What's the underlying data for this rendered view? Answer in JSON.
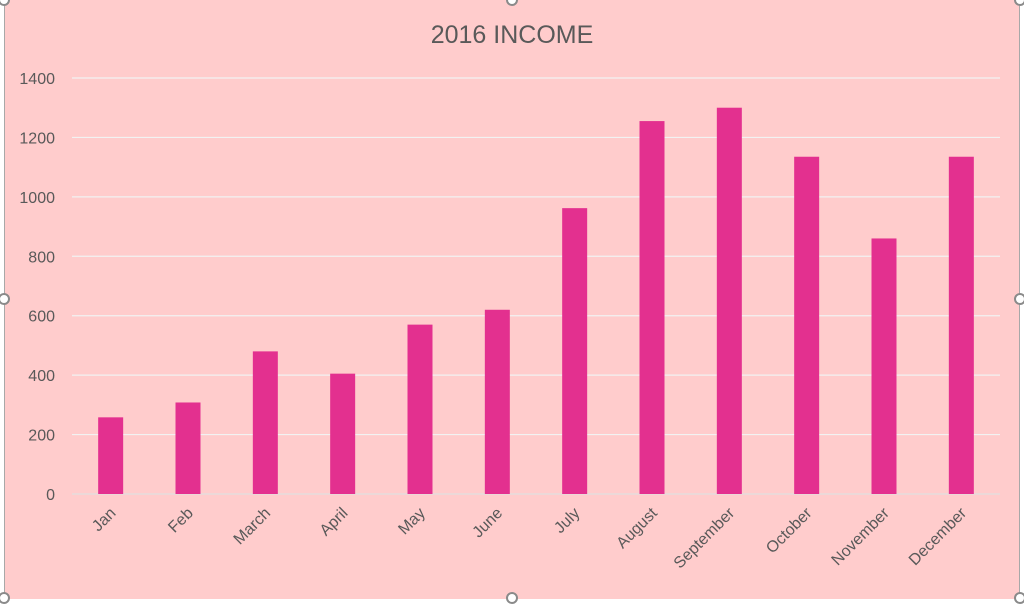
{
  "chart_data": {
    "type": "bar",
    "title": "2016 INCOME",
    "xlabel": "",
    "ylabel": "",
    "categories": [
      "Jan",
      "Feb",
      "March",
      "April",
      "May",
      "June",
      "July",
      "August",
      "September",
      "October",
      "November",
      "December"
    ],
    "series": [
      {
        "values": [
          258,
          308,
          480,
          405,
          570,
          620,
          962,
          1255,
          1300,
          1135,
          860,
          1135
        ]
      }
    ],
    "ylim": [
      0,
      1400
    ],
    "yticks": [
      "0",
      "200",
      "400",
      "600",
      "800",
      "1000",
      "1200",
      "1400"
    ],
    "grid": true,
    "legend": "none",
    "colors": {
      "bar": "#e3308f",
      "background": "#ffcccc",
      "grid": "#f2f2f2",
      "text": "#595959"
    }
  }
}
